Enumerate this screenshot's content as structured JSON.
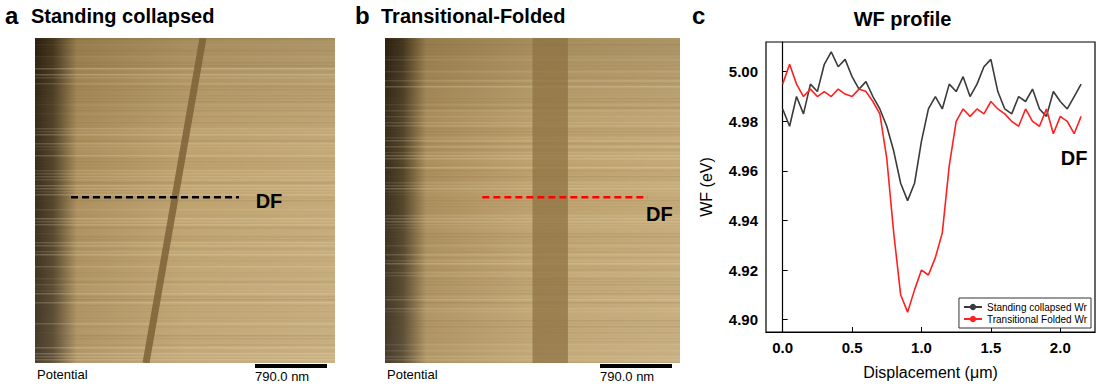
{
  "panels": [
    {
      "letter": "a",
      "title": "Standing collapsed",
      "label": "DF",
      "color": "#000000",
      "footer": "Potential",
      "scale_bar": "790.0 nm"
    },
    {
      "letter": "b",
      "title": "Transitional-Folded",
      "label": "DF",
      "color": "#ff0000",
      "footer": "Potential",
      "scale_bar": "790.0 nm"
    }
  ],
  "chart_data": {
    "letter": "c",
    "type": "line",
    "title": "WF profile",
    "x_label": "Displacement (μm)",
    "y_label": "WF (eV)",
    "x": [
      0,
      0.05,
      0.1,
      0.15,
      0.2,
      0.25,
      0.3,
      0.35,
      0.4,
      0.45,
      0.5,
      0.55,
      0.6,
      0.65,
      0.7,
      0.75,
      0.8,
      0.85,
      0.9,
      0.95,
      1.0,
      1.05,
      1.1,
      1.15,
      1.2,
      1.25,
      1.3,
      1.35,
      1.4,
      1.45,
      1.5,
      1.55,
      1.6,
      1.65,
      1.7,
      1.75,
      1.8,
      1.85,
      1.9,
      1.95,
      2.0,
      2.05,
      2.1,
      2.15
    ],
    "series": [
      {
        "name": "Standing collapsed Wr",
        "color": "#3a3a3a",
        "values": [
          4.985,
          4.978,
          4.99,
          4.983,
          4.995,
          4.992,
          5.003,
          5.008,
          5.002,
          5.005,
          4.998,
          4.993,
          4.996,
          4.99,
          4.985,
          4.978,
          4.968,
          4.955,
          4.948,
          4.955,
          4.972,
          4.985,
          4.99,
          4.985,
          4.995,
          4.992,
          4.998,
          4.99,
          4.995,
          5.002,
          5.005,
          4.992,
          4.985,
          4.983,
          4.99,
          4.988,
          4.993,
          4.985,
          4.982,
          4.992,
          4.988,
          4.985,
          4.99,
          4.995
        ]
      },
      {
        "name": "Transitional Folded Wr",
        "color": "#ff2020",
        "values": [
          4.995,
          5.003,
          4.995,
          4.99,
          4.993,
          4.99,
          4.992,
          4.99,
          4.993,
          4.991,
          4.99,
          4.993,
          4.992,
          4.988,
          4.983,
          4.965,
          4.935,
          4.91,
          4.903,
          4.912,
          4.92,
          4.918,
          4.925,
          4.935,
          4.962,
          4.98,
          4.985,
          4.982,
          4.985,
          4.983,
          4.988,
          4.985,
          4.983,
          4.98,
          4.978,
          4.985,
          4.98,
          4.978,
          4.985,
          4.975,
          4.982,
          4.98,
          4.975,
          4.982
        ]
      }
    ],
    "xlim": [
      -0.12,
      2.25
    ],
    "xticks": [
      {
        "value": 0,
        "label": "0.0"
      },
      {
        "value": 0.5,
        "label": "0.5"
      },
      {
        "value": 1,
        "label": "1.0"
      },
      {
        "value": 1.5,
        "label": "1.5"
      },
      {
        "value": 2,
        "label": "2.0"
      }
    ],
    "ylim": [
      4.895,
      5.012
    ],
    "yticks": [
      {
        "value": 4.9,
        "label": "4.90"
      },
      {
        "value": 4.92,
        "label": "4.92"
      },
      {
        "value": 4.94,
        "label": "4.94"
      },
      {
        "value": 4.96,
        "label": "4.96"
      },
      {
        "value": 4.98,
        "label": "4.98"
      },
      {
        "value": 5.0,
        "label": "5.00"
      }
    ],
    "grid": false,
    "legend": "lower right",
    "annotations": [
      {
        "text": "DF",
        "x": 2.1,
        "y": 4.965
      }
    ]
  }
}
